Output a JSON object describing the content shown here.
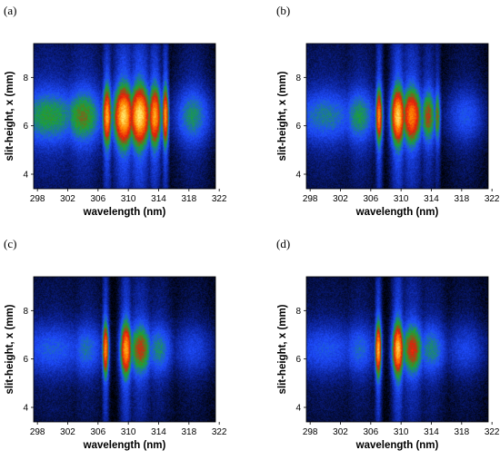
{
  "chart_data": [
    {
      "type": "heatmap",
      "panel_label": "(a)",
      "xlabel": "wavelength (nm)",
      "ylabel": "slit-height, x (mm)",
      "x_ticks": [
        298,
        302,
        306,
        310,
        314,
        318,
        322
      ],
      "y_ticks": [
        4,
        6,
        8
      ],
      "xlim": [
        297.5,
        321.5
      ],
      "ylim": [
        3.4,
        9.4
      ],
      "colormap": [
        "#000000",
        "#0a1f8f",
        "#1e4cff",
        "#1aa530",
        "#e81a0a",
        "#ff8a00",
        "#fff57a"
      ],
      "bands": [
        {
          "center_nm": 299.5,
          "width_nm": 6.0,
          "intensity": 0.5
        },
        {
          "center_nm": 304.0,
          "width_nm": 3.2,
          "intensity": 0.56
        },
        {
          "center_nm": 307.2,
          "width_nm": 0.7,
          "intensity": 0.88
        },
        {
          "center_nm": 309.4,
          "width_nm": 1.6,
          "intensity": 0.96
        },
        {
          "center_nm": 311.5,
          "width_nm": 1.6,
          "intensity": 0.98
        },
        {
          "center_nm": 313.5,
          "width_nm": 1.0,
          "intensity": 0.88
        },
        {
          "center_nm": 314.9,
          "width_nm": 0.5,
          "intensity": 0.86
        },
        {
          "center_nm": 318.5,
          "width_nm": 2.8,
          "intensity": 0.46
        }
      ],
      "vertical_profile": {
        "center_mm": 6.4,
        "width_mm": 1.15
      }
    },
    {
      "type": "heatmap",
      "panel_label": "(b)",
      "xlabel": "wavelength (nm)",
      "ylabel": "slit-height, x (mm)",
      "x_ticks": [
        298,
        302,
        306,
        310,
        314,
        318,
        322
      ],
      "y_ticks": [
        4,
        6,
        8
      ],
      "xlim": [
        297.5,
        321.5
      ],
      "ylim": [
        3.4,
        9.4
      ],
      "colormap": [
        "#000000",
        "#0a1f8f",
        "#1e4cff",
        "#1aa530",
        "#e81a0a",
        "#ff8a00",
        "#fff57a"
      ],
      "bands": [
        {
          "center_nm": 300.0,
          "width_nm": 5.5,
          "intensity": 0.42
        },
        {
          "center_nm": 304.5,
          "width_nm": 2.6,
          "intensity": 0.48
        },
        {
          "center_nm": 307.1,
          "width_nm": 0.55,
          "intensity": 0.84
        },
        {
          "center_nm": 309.6,
          "width_nm": 1.1,
          "intensity": 0.95
        },
        {
          "center_nm": 311.4,
          "width_nm": 1.6,
          "intensity": 0.82
        },
        {
          "center_nm": 313.6,
          "width_nm": 1.2,
          "intensity": 0.62
        },
        {
          "center_nm": 314.8,
          "width_nm": 0.5,
          "intensity": 0.58
        },
        {
          "center_nm": 318.5,
          "width_nm": 3.0,
          "intensity": 0.34
        }
      ],
      "vertical_profile": {
        "center_mm": 6.4,
        "width_mm": 1.1
      }
    },
    {
      "type": "heatmap",
      "panel_label": "(c)",
      "xlabel": "wavelength (nm)",
      "ylabel": "slit-height, x (mm)",
      "x_ticks": [
        298,
        302,
        306,
        310,
        314,
        318,
        322
      ],
      "y_ticks": [
        4,
        6,
        8
      ],
      "xlim": [
        297.5,
        321.5
      ],
      "ylim": [
        3.4,
        9.4
      ],
      "colormap": [
        "#000000",
        "#0a1f8f",
        "#1e4cff",
        "#1aa530",
        "#e81a0a",
        "#ff8a00",
        "#fff57a"
      ],
      "bands": [
        {
          "center_nm": 300.0,
          "width_nm": 6.0,
          "intensity": 0.36
        },
        {
          "center_nm": 304.5,
          "width_nm": 2.6,
          "intensity": 0.4
        },
        {
          "center_nm": 307.0,
          "width_nm": 0.5,
          "intensity": 0.84
        },
        {
          "center_nm": 309.7,
          "width_nm": 0.9,
          "intensity": 0.88
        },
        {
          "center_nm": 311.6,
          "width_nm": 1.8,
          "intensity": 0.64
        },
        {
          "center_nm": 314.0,
          "width_nm": 2.2,
          "intensity": 0.44
        },
        {
          "center_nm": 318.5,
          "width_nm": 3.2,
          "intensity": 0.3
        }
      ],
      "vertical_profile": {
        "center_mm": 6.4,
        "width_mm": 1.05
      }
    },
    {
      "type": "heatmap",
      "panel_label": "(d)",
      "xlabel": "wavelength (nm)",
      "ylabel": "slit-height, x (mm)",
      "x_ticks": [
        298,
        302,
        306,
        310,
        314,
        318,
        322
      ],
      "y_ticks": [
        4,
        6,
        8
      ],
      "xlim": [
        297.5,
        321.5
      ],
      "ylim": [
        3.4,
        9.4
      ],
      "colormap": [
        "#000000",
        "#0a1f8f",
        "#1e4cff",
        "#1aa530",
        "#e81a0a",
        "#ff8a00",
        "#fff57a"
      ],
      "bands": [
        {
          "center_nm": 300.0,
          "width_nm": 6.0,
          "intensity": 0.34
        },
        {
          "center_nm": 304.5,
          "width_nm": 2.6,
          "intensity": 0.38
        },
        {
          "center_nm": 307.0,
          "width_nm": 0.5,
          "intensity": 0.9
        },
        {
          "center_nm": 309.6,
          "width_nm": 0.9,
          "intensity": 0.92
        },
        {
          "center_nm": 311.5,
          "width_nm": 1.8,
          "intensity": 0.66
        },
        {
          "center_nm": 314.0,
          "width_nm": 2.4,
          "intensity": 0.44
        },
        {
          "center_nm": 318.5,
          "width_nm": 3.2,
          "intensity": 0.3
        }
      ],
      "vertical_profile": {
        "center_mm": 6.4,
        "width_mm": 1.05
      }
    }
  ]
}
